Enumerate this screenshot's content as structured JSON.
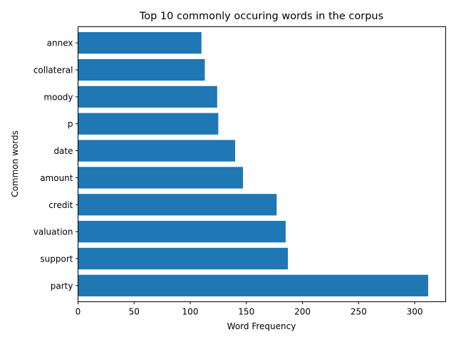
{
  "chart_data": {
    "type": "bar",
    "orientation": "horizontal",
    "title": "Top 10 commonly occuring words in the corpus",
    "xlabel": "Word Frequency",
    "ylabel": "Common words",
    "categories": [
      "party",
      "support",
      "valuation",
      "credit",
      "amount",
      "date",
      "p",
      "moody",
      "collateral",
      "annex"
    ],
    "values": [
      312,
      187,
      185,
      177,
      147,
      140,
      125,
      124,
      113,
      110
    ],
    "xlim": [
      0,
      327.6
    ],
    "xticks": [
      0,
      50,
      100,
      150,
      200,
      250,
      300
    ],
    "bar_color": "#1f77b4",
    "grid": false
  }
}
